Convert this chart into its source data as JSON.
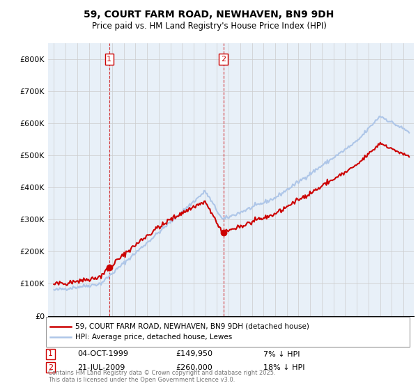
{
  "title_line1": "59, COURT FARM ROAD, NEWHAVEN, BN9 9DH",
  "title_line2": "Price paid vs. HM Land Registry's House Price Index (HPI)",
  "ylim": [
    0,
    850000
  ],
  "yticks": [
    0,
    100000,
    200000,
    300000,
    400000,
    500000,
    600000,
    700000,
    800000
  ],
  "ytick_labels": [
    "£0",
    "£100K",
    "£200K",
    "£300K",
    "£400K",
    "£500K",
    "£600K",
    "£700K",
    "£800K"
  ],
  "hpi_color": "#aec6e8",
  "price_color": "#cc0000",
  "marker_color": "#cc0000",
  "vline_color": "#cc0000",
  "grid_color": "#cccccc",
  "bg_color": "#e8f0f8",
  "legend_label_price": "59, COURT FARM ROAD, NEWHAVEN, BN9 9DH (detached house)",
  "legend_label_hpi": "HPI: Average price, detached house, Lewes",
  "transaction1_label": "1",
  "transaction1_date": "04-OCT-1999",
  "transaction1_price": "£149,950",
  "transaction1_hpi": "7% ↓ HPI",
  "transaction2_label": "2",
  "transaction2_date": "21-JUL-2009",
  "transaction2_price": "£260,000",
  "transaction2_hpi": "18% ↓ HPI",
  "copyright_text": "Contains HM Land Registry data © Crown copyright and database right 2025.\nThis data is licensed under the Open Government Licence v3.0.",
  "transaction1_year": 1999.75,
  "transaction2_year": 2009.55,
  "transaction1_price_val": 149950,
  "transaction2_price_val": 260000
}
